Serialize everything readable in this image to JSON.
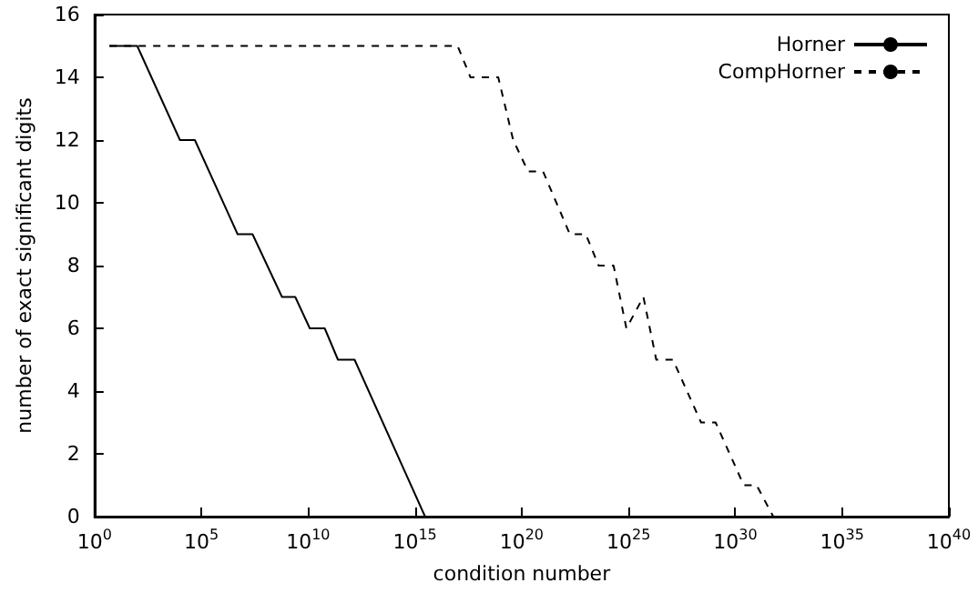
{
  "chart_data": {
    "type": "line",
    "xlabel": "condition number",
    "ylabel": "number of exact significant digits",
    "log": "x",
    "grid": false,
    "legend": "top right",
    "marker": "none",
    "xlim": [
      1,
      1e+40
    ],
    "xticks": [
      {
        "value": 1,
        "label": "10$^{0}$"
      },
      {
        "value": 100000.0,
        "label": "10$^{5}$"
      },
      {
        "value": 10000000000.0,
        "label": "10$^{10}$"
      },
      {
        "value": 1000000000000000.0,
        "label": "10$^{15}$"
      },
      {
        "value": 1e+20,
        "label": "10$^{20}$"
      },
      {
        "value": 1e+25,
        "label": "10$^{25}$"
      },
      {
        "value": 1e+30,
        "label": "10$^{30}$"
      },
      {
        "value": 1e+35,
        "label": "10$^{35}$"
      },
      {
        "value": 1e+40,
        "label": "10$^{40}$"
      }
    ],
    "ylim": [
      0,
      16
    ],
    "yticks": [
      0,
      2,
      4,
      6,
      8,
      10,
      12,
      14,
      16
    ],
    "series": [
      {
        "name": "Horner",
        "color": "#000000",
        "line_style": "solid",
        "x": [
          5,
          100,
          10000.0,
          50000.0,
          5000000.0,
          25000000.0,
          600000000.0,
          2500000000.0,
          12000000000.0,
          60000000000.0,
          250000000000.0,
          1500000000000.0,
          3000000000000000.0
        ],
        "values": [
          15,
          15,
          12,
          12,
          9,
          9,
          7,
          7,
          6,
          6,
          5,
          5,
          0
        ]
      },
      {
        "name": "CompHorner",
        "color": "#000000",
        "line_style": "dashed",
        "x": [
          5,
          1e+17,
          4e+17,
          8e+18,
          4e+19,
          2e+20,
          1e+21,
          1.8e+22,
          1e+23,
          4e+23,
          2e+24,
          8e+24,
          5e+25,
          2e+26,
          1.2e+27,
          2.5e+28,
          1.2e+29,
          2.5e+30,
          1e+31,
          6e+31
        ],
        "values": [
          15,
          15,
          14,
          14,
          12,
          11,
          11,
          9,
          9,
          8,
          8,
          6,
          7,
          5,
          5,
          3,
          3,
          1,
          1,
          0
        ]
      }
    ]
  }
}
